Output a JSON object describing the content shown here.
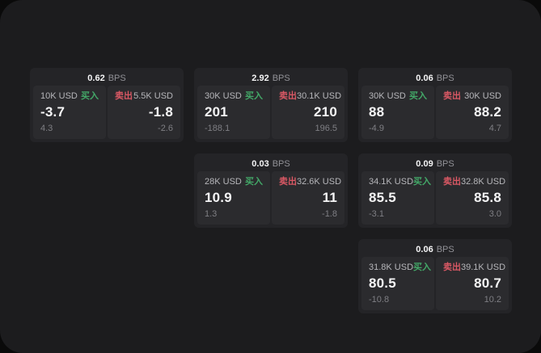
{
  "labels": {
    "bps_suffix": "BPS",
    "buy": "买入",
    "sell": "卖出"
  },
  "colors": {
    "page_background": "#0a0a0a",
    "surface": "#1c1c1e",
    "card_background": "#242427",
    "panel_background": "#2b2b2e",
    "buy_green": "#43a868",
    "sell_red": "#d95864",
    "primary_text": "#f6f6f7",
    "muted_text": "#7f7f84"
  },
  "cards": [
    {
      "row": 1,
      "col": 1,
      "bps": "0.62",
      "buy": {
        "amount": "10K USD",
        "value": "-3.7",
        "sub": "4.3"
      },
      "sell": {
        "amount": "5.5K USD",
        "value": "-1.8",
        "sub": "-2.6"
      }
    },
    {
      "row": 1,
      "col": 2,
      "bps": "2.92",
      "buy": {
        "amount": "30K USD",
        "value": "201",
        "sub": "-188.1"
      },
      "sell": {
        "amount": "30.1K USD",
        "value": "210",
        "sub": "196.5"
      }
    },
    {
      "row": 1,
      "col": 3,
      "bps": "0.06",
      "buy": {
        "amount": "30K USD",
        "value": "88",
        "sub": "-4.9"
      },
      "sell": {
        "amount": "30K USD",
        "value": "88.2",
        "sub": "4.7"
      }
    },
    {
      "row": 2,
      "col": 2,
      "bps": "0.03",
      "buy": {
        "amount": "28K USD",
        "value": "10.9",
        "sub": "1.3"
      },
      "sell": {
        "amount": "32.6K USD",
        "value": "11",
        "sub": "-1.8"
      }
    },
    {
      "row": 2,
      "col": 3,
      "bps": "0.09",
      "buy": {
        "amount": "34.1K USD",
        "value": "85.5",
        "sub": "-3.1"
      },
      "sell": {
        "amount": "32.8K USD",
        "value": "85.8",
        "sub": "3.0"
      }
    },
    {
      "row": 3,
      "col": 3,
      "bps": "0.06",
      "buy": {
        "amount": "31.8K USD",
        "value": "80.5",
        "sub": "-10.8"
      },
      "sell": {
        "amount": "39.1K USD",
        "value": "80.7",
        "sub": "10.2"
      }
    }
  ]
}
